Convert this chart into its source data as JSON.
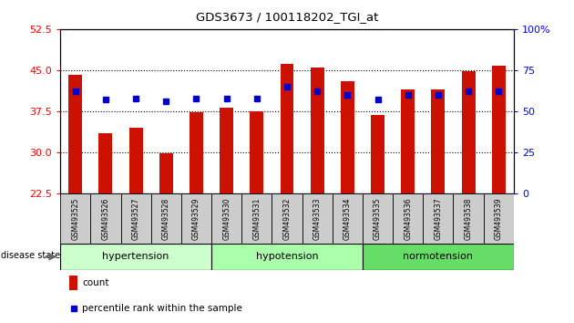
{
  "title": "GDS3673 / 100118202_TGI_at",
  "samples": [
    "GSM493525",
    "GSM493526",
    "GSM493527",
    "GSM493528",
    "GSM493529",
    "GSM493530",
    "GSM493531",
    "GSM493532",
    "GSM493533",
    "GSM493534",
    "GSM493535",
    "GSM493536",
    "GSM493537",
    "GSM493538",
    "GSM493539"
  ],
  "count_values": [
    44.2,
    33.5,
    34.5,
    29.8,
    37.4,
    38.2,
    37.6,
    46.2,
    45.5,
    43.0,
    36.8,
    41.5,
    41.5,
    44.8,
    45.8
  ],
  "percentile_values": [
    62,
    57,
    58,
    56,
    58,
    58,
    58,
    65,
    62,
    60,
    57,
    60,
    60,
    62,
    62
  ],
  "ylim_left": [
    22.5,
    52.5
  ],
  "ylim_right": [
    0,
    100
  ],
  "yticks_left": [
    22.5,
    30,
    37.5,
    45,
    52.5
  ],
  "yticks_right": [
    0,
    25,
    50,
    75,
    100
  ],
  "bar_color": "#cc1100",
  "dot_color": "#0000cc",
  "groups": [
    {
      "label": "hypertension",
      "start": 0,
      "end": 4,
      "color": "#ccffcc"
    },
    {
      "label": "hypotension",
      "start": 5,
      "end": 9,
      "color": "#aaffaa"
    },
    {
      "label": "normotension",
      "start": 10,
      "end": 14,
      "color": "#66dd66"
    }
  ],
  "disease_state_label": "disease state",
  "legend_items": [
    {
      "label": "count",
      "color": "#cc1100"
    },
    {
      "label": "percentile rank within the sample",
      "color": "#0000cc"
    }
  ],
  "bar_width": 0.45,
  "xtick_bg_color": "#cccccc",
  "spine_color": "#000000"
}
